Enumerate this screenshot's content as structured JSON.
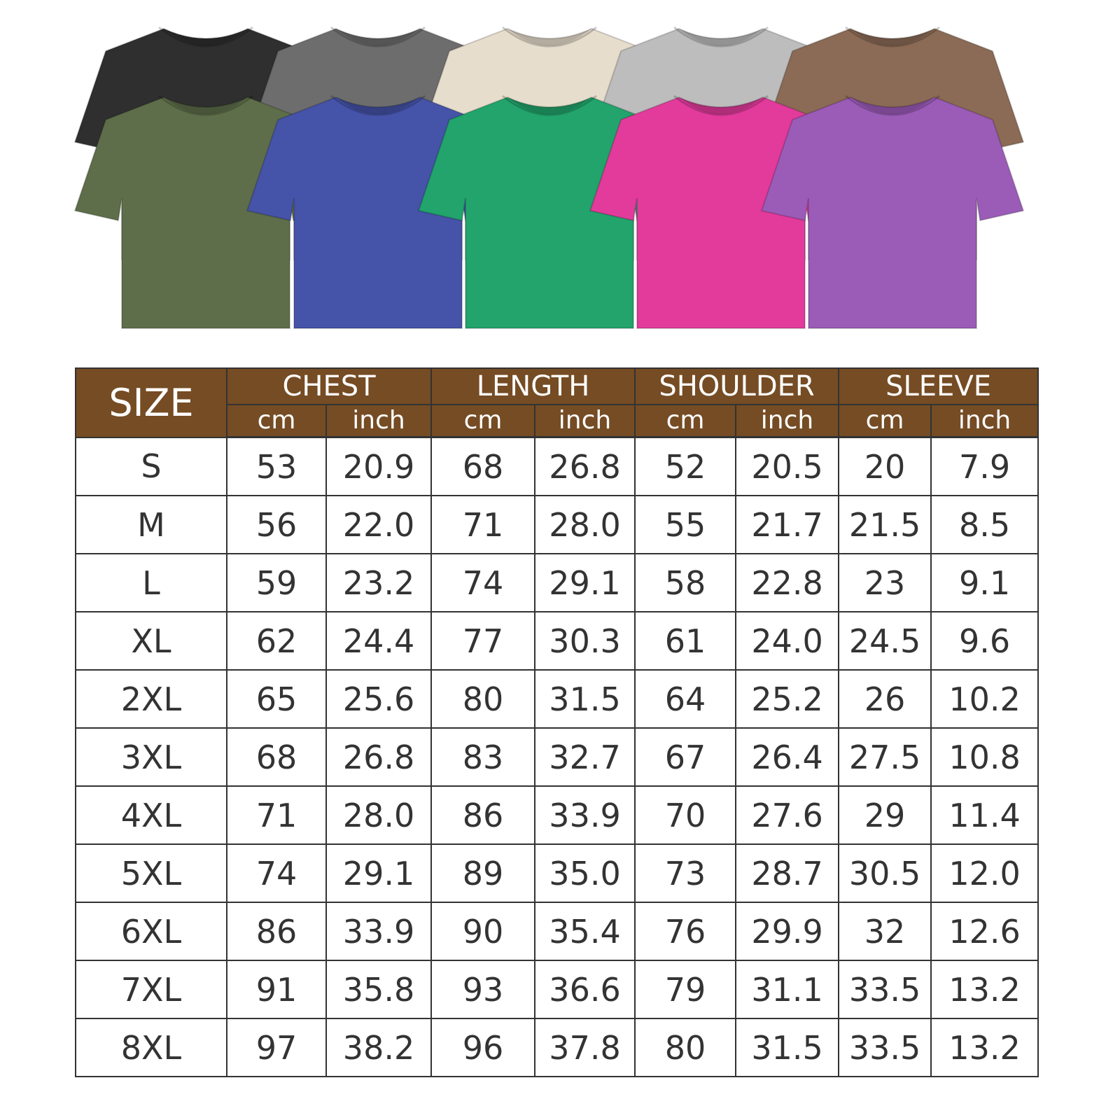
{
  "shirts": {
    "back_row": [
      {
        "color_name": "black",
        "hex": "#2f2f2f"
      },
      {
        "color_name": "dark-grey",
        "hex": "#6d6d6d"
      },
      {
        "color_name": "cream",
        "hex": "#e7ddcc"
      },
      {
        "color_name": "light-grey",
        "hex": "#bdbdbd"
      },
      {
        "color_name": "brown",
        "hex": "#8b6b56"
      }
    ],
    "front_row": [
      {
        "color_name": "olive",
        "hex": "#5e6e4a"
      },
      {
        "color_name": "blue",
        "hex": "#4553a8"
      },
      {
        "color_name": "green",
        "hex": "#22a46c"
      },
      {
        "color_name": "pink",
        "hex": "#e23b9c"
      },
      {
        "color_name": "purple",
        "hex": "#9b5cb8"
      }
    ]
  },
  "table": {
    "header_color": "#754c24",
    "size_label": "SIZE",
    "groups": [
      "CHEST",
      "LENGTH",
      "SHOULDER",
      "SLEEVE"
    ],
    "units": [
      "cm",
      "inch"
    ],
    "rows": [
      [
        "S",
        "53",
        "20.9",
        "68",
        "26.8",
        "52",
        "20.5",
        "20",
        "7.9"
      ],
      [
        "M",
        "56",
        "22.0",
        "71",
        "28.0",
        "55",
        "21.7",
        "21.5",
        "8.5"
      ],
      [
        "L",
        "59",
        "23.2",
        "74",
        "29.1",
        "58",
        "22.8",
        "23",
        "9.1"
      ],
      [
        "XL",
        "62",
        "24.4",
        "77",
        "30.3",
        "61",
        "24.0",
        "24.5",
        "9.6"
      ],
      [
        "2XL",
        "65",
        "25.6",
        "80",
        "31.5",
        "64",
        "25.2",
        "26",
        "10.2"
      ],
      [
        "3XL",
        "68",
        "26.8",
        "83",
        "32.7",
        "67",
        "26.4",
        "27.5",
        "10.8"
      ],
      [
        "4XL",
        "71",
        "28.0",
        "86",
        "33.9",
        "70",
        "27.6",
        "29",
        "11.4"
      ],
      [
        "5XL",
        "74",
        "29.1",
        "89",
        "35.0",
        "73",
        "28.7",
        "30.5",
        "12.0"
      ],
      [
        "6XL",
        "86",
        "33.9",
        "90",
        "35.4",
        "76",
        "29.9",
        "32",
        "12.6"
      ],
      [
        "7XL",
        "91",
        "35.8",
        "93",
        "36.6",
        "79",
        "31.1",
        "33.5",
        "13.2"
      ],
      [
        "8XL",
        "97",
        "38.2",
        "96",
        "37.8",
        "80",
        "31.5",
        "33.5",
        "13.2"
      ]
    ]
  }
}
